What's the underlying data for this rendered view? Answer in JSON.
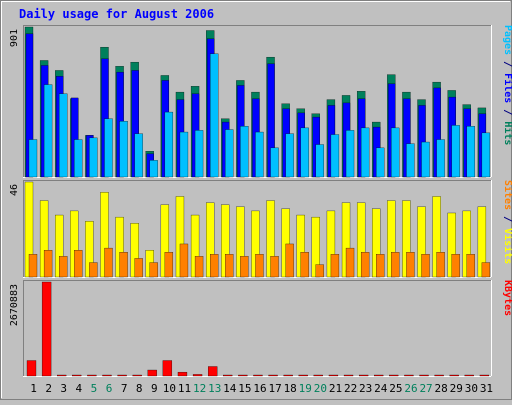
{
  "title": "Daily usage for August 2006",
  "colors": {
    "background": "#c0c0c0",
    "hits": "#00805c",
    "files": "#0000ff",
    "pages": "#00c0ff",
    "visits": "#ffff00",
    "sites": "#ff8000",
    "kbytes": "#ff0000",
    "weekend_label": "#00805c",
    "title": "#0000ff"
  },
  "chart_data": [
    {
      "type": "bar",
      "title": "Daily usage for August 2006",
      "categories": [
        "1",
        "2",
        "3",
        "4",
        "5",
        "6",
        "7",
        "8",
        "9",
        "10",
        "11",
        "12",
        "13",
        "14",
        "15",
        "16",
        "17",
        "18",
        "19",
        "20",
        "21",
        "22",
        "23",
        "24",
        "25",
        "26",
        "27",
        "28",
        "29",
        "30",
        "31"
      ],
      "weekend_days": [
        "5",
        "6",
        "12",
        "13",
        "19",
        "20",
        "26",
        "27"
      ],
      "ylim": [
        0,
        901
      ],
      "ymax_label": "901",
      "side_label": [
        {
          "text": "Pages",
          "color": "#00c0ff"
        },
        {
          "text": " / ",
          "color": "#000080"
        },
        {
          "text": "Files",
          "color": "#0000ff"
        },
        {
          "text": " / ",
          "color": "#000080"
        },
        {
          "text": "Hits",
          "color": "#00805c"
        }
      ],
      "series": [
        {
          "name": "Hits",
          "color": "#00805c",
          "values": [
            901,
            700,
            640,
            470,
            250,
            780,
            665,
            690,
            155,
            610,
            510,
            545,
            880,
            350,
            580,
            510,
            720,
            440,
            410,
            380,
            465,
            490,
            515,
            330,
            615,
            510,
            465,
            570,
            520,
            435,
            415
          ]
        },
        {
          "name": "Files",
          "color": "#0000ff",
          "values": [
            860,
            670,
            605,
            475,
            250,
            710,
            630,
            640,
            140,
            580,
            465,
            500,
            830,
            330,
            550,
            470,
            680,
            410,
            385,
            360,
            430,
            445,
            470,
            300,
            560,
            470,
            430,
            535,
            480,
            410,
            380
          ]
        },
        {
          "name": "Pages",
          "color": "#00c0ff",
          "values": [
            225,
            555,
            500,
            225,
            235,
            350,
            335,
            260,
            100,
            390,
            270,
            280,
            740,
            285,
            305,
            270,
            175,
            260,
            295,
            195,
            255,
            280,
            295,
            175,
            295,
            200,
            210,
            225,
            310,
            305,
            265
          ]
        }
      ]
    },
    {
      "type": "bar",
      "categories": [
        "1",
        "2",
        "3",
        "4",
        "5",
        "6",
        "7",
        "8",
        "9",
        "10",
        "11",
        "12",
        "13",
        "14",
        "15",
        "16",
        "17",
        "18",
        "19",
        "20",
        "21",
        "22",
        "23",
        "24",
        "25",
        "26",
        "27",
        "28",
        "29",
        "30",
        "31"
      ],
      "ylim": [
        0,
        46
      ],
      "ymax_label": "46",
      "side_label": [
        {
          "text": "Sites",
          "color": "#ff8000"
        },
        {
          "text": " / ",
          "color": "#000080"
        },
        {
          "text": "Visits",
          "color": "#ffff00"
        }
      ],
      "series": [
        {
          "name": "Visits",
          "color": "#ffff00",
          "values": [
            46,
            37,
            30,
            32,
            27,
            41,
            29,
            26,
            13,
            35,
            39,
            30,
            36,
            35,
            34,
            32,
            37,
            33,
            30,
            29,
            32,
            36,
            36,
            33,
            37,
            37,
            34,
            39,
            31,
            32,
            34
          ]
        },
        {
          "name": "Sites",
          "color": "#ff8000",
          "values": [
            11,
            13,
            10,
            13,
            7,
            14,
            12,
            9,
            7,
            12,
            16,
            10,
            11,
            11,
            10,
            11,
            10,
            16,
            12,
            6,
            11,
            14,
            12,
            11,
            12,
            12,
            11,
            12,
            11,
            11,
            7
          ]
        }
      ]
    },
    {
      "type": "bar",
      "categories": [
        "1",
        "2",
        "3",
        "4",
        "5",
        "6",
        "7",
        "8",
        "9",
        "10",
        "11",
        "12",
        "13",
        "14",
        "15",
        "16",
        "17",
        "18",
        "19",
        "20",
        "21",
        "22",
        "23",
        "24",
        "25",
        "26",
        "27",
        "28",
        "29",
        "30",
        "31"
      ],
      "ylim": [
        0,
        2670883
      ],
      "ymax_label": "2670883",
      "side_label": [
        {
          "text": "KBytes",
          "color": "#ff0000"
        }
      ],
      "series": [
        {
          "name": "KBytes",
          "color": "#ff0000",
          "values": [
            440000,
            2670883,
            15000,
            15000,
            15000,
            15000,
            15000,
            15000,
            170000,
            440000,
            110000,
            45000,
            270000,
            15000,
            15000,
            15000,
            15000,
            15000,
            15000,
            15000,
            15000,
            15000,
            15000,
            15000,
            15000,
            15000,
            15000,
            15000,
            15000,
            15000,
            15000
          ]
        }
      ]
    }
  ]
}
